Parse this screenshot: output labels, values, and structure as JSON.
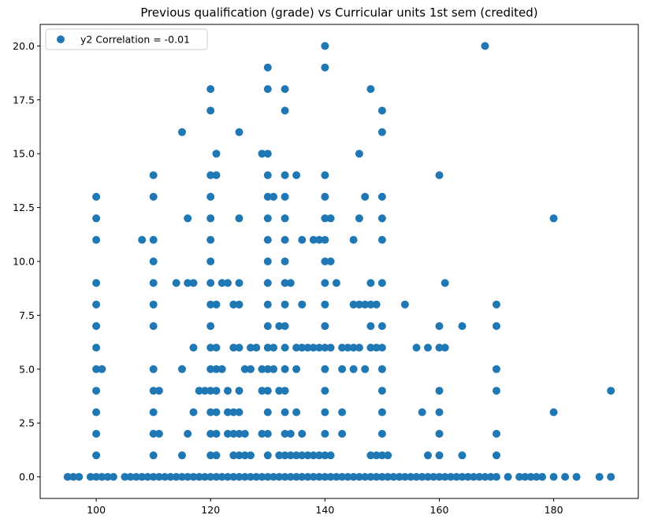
{
  "chart_data": {
    "type": "scatter",
    "title": "Previous qualification (grade) vs Curricular units 1st sem (credited)",
    "xlabel": "",
    "ylabel": "",
    "xlim": [
      90.2,
      194.8
    ],
    "ylim": [
      -1.0,
      21.0
    ],
    "x_ticks": [
      100,
      120,
      140,
      160,
      180
    ],
    "y_ticks": [
      0.0,
      2.5,
      5.0,
      7.5,
      10.0,
      12.5,
      15.0,
      17.5,
      20.0
    ],
    "y_tick_labels": [
      "0.0",
      "2.5",
      "5.0",
      "7.5",
      "10.0",
      "12.5",
      "15.0",
      "17.5",
      "20.0"
    ],
    "grid": false,
    "legend_position": "top-left",
    "marker_color": "#1f77b4",
    "series": [
      {
        "name": "y2 Correlation = -0.01",
        "points": [
          [
            95,
            0
          ],
          [
            96,
            0
          ],
          [
            97,
            0
          ],
          [
            99,
            0
          ],
          [
            100,
            0
          ],
          [
            101,
            0
          ],
          [
            102,
            0
          ],
          [
            103,
            0
          ],
          [
            105,
            0
          ],
          [
            106,
            0
          ],
          [
            107,
            0
          ],
          [
            108,
            0
          ],
          [
            109,
            0
          ],
          [
            110,
            0
          ],
          [
            111,
            0
          ],
          [
            112,
            0
          ],
          [
            113,
            0
          ],
          [
            114,
            0
          ],
          [
            115,
            0
          ],
          [
            116,
            0
          ],
          [
            117,
            0
          ],
          [
            118,
            0
          ],
          [
            119,
            0
          ],
          [
            120,
            0
          ],
          [
            121,
            0
          ],
          [
            122,
            0
          ],
          [
            123,
            0
          ],
          [
            124,
            0
          ],
          [
            125,
            0
          ],
          [
            126,
            0
          ],
          [
            127,
            0
          ],
          [
            128,
            0
          ],
          [
            129,
            0
          ],
          [
            130,
            0
          ],
          [
            131,
            0
          ],
          [
            132,
            0
          ],
          [
            133,
            0
          ],
          [
            134,
            0
          ],
          [
            135,
            0
          ],
          [
            136,
            0
          ],
          [
            137,
            0
          ],
          [
            138,
            0
          ],
          [
            139,
            0
          ],
          [
            140,
            0
          ],
          [
            141,
            0
          ],
          [
            142,
            0
          ],
          [
            143,
            0
          ],
          [
            144,
            0
          ],
          [
            145,
            0
          ],
          [
            146,
            0
          ],
          [
            147,
            0
          ],
          [
            148,
            0
          ],
          [
            149,
            0
          ],
          [
            150,
            0
          ],
          [
            151,
            0
          ],
          [
            152,
            0
          ],
          [
            153,
            0
          ],
          [
            154,
            0
          ],
          [
            155,
            0
          ],
          [
            156,
            0
          ],
          [
            157,
            0
          ],
          [
            158,
            0
          ],
          [
            159,
            0
          ],
          [
            160,
            0
          ],
          [
            161,
            0
          ],
          [
            162,
            0
          ],
          [
            163,
            0
          ],
          [
            164,
            0
          ],
          [
            165,
            0
          ],
          [
            166,
            0
          ],
          [
            167,
            0
          ],
          [
            168,
            0
          ],
          [
            169,
            0
          ],
          [
            170,
            0
          ],
          [
            172,
            0
          ],
          [
            174,
            0
          ],
          [
            175,
            0
          ],
          [
            176,
            0
          ],
          [
            177,
            0
          ],
          [
            178,
            0
          ],
          [
            180,
            0
          ],
          [
            182,
            0
          ],
          [
            184,
            0
          ],
          [
            188,
            0
          ],
          [
            190,
            0
          ],
          [
            100,
            1
          ],
          [
            100,
            2
          ],
          [
            100,
            3
          ],
          [
            100,
            4
          ],
          [
            100,
            5
          ],
          [
            100,
            6
          ],
          [
            100,
            7
          ],
          [
            100,
            8
          ],
          [
            100,
            9
          ],
          [
            100,
            11
          ],
          [
            100,
            12
          ],
          [
            100,
            13
          ],
          [
            101,
            5
          ],
          [
            108,
            11
          ],
          [
            110,
            1
          ],
          [
            110,
            2
          ],
          [
            110,
            3
          ],
          [
            110,
            4
          ],
          [
            110,
            5
          ],
          [
            110,
            7
          ],
          [
            110,
            8
          ],
          [
            110,
            9
          ],
          [
            110,
            10
          ],
          [
            110,
            11
          ],
          [
            110,
            13
          ],
          [
            110,
            14
          ],
          [
            111,
            2
          ],
          [
            111,
            4
          ],
          [
            114,
            9
          ],
          [
            115,
            1
          ],
          [
            115,
            5
          ],
          [
            115,
            16
          ],
          [
            116,
            2
          ],
          [
            116,
            9
          ],
          [
            116,
            12
          ],
          [
            117,
            3
          ],
          [
            117,
            6
          ],
          [
            117,
            9
          ],
          [
            118,
            4
          ],
          [
            119,
            4
          ],
          [
            120,
            1
          ],
          [
            120,
            2
          ],
          [
            120,
            3
          ],
          [
            120,
            4
          ],
          [
            120,
            5
          ],
          [
            120,
            6
          ],
          [
            120,
            7
          ],
          [
            120,
            8
          ],
          [
            120,
            9
          ],
          [
            120,
            10
          ],
          [
            120,
            11
          ],
          [
            120,
            12
          ],
          [
            120,
            13
          ],
          [
            120,
            14
          ],
          [
            120,
            17
          ],
          [
            120,
            18
          ],
          [
            121,
            1
          ],
          [
            121,
            2
          ],
          [
            121,
            3
          ],
          [
            121,
            4
          ],
          [
            121,
            5
          ],
          [
            121,
            6
          ],
          [
            121,
            8
          ],
          [
            121,
            14
          ],
          [
            121,
            15
          ],
          [
            122,
            5
          ],
          [
            122,
            9
          ],
          [
            123,
            2
          ],
          [
            123,
            3
          ],
          [
            123,
            4
          ],
          [
            123,
            9
          ],
          [
            124,
            1
          ],
          [
            124,
            2
          ],
          [
            124,
            3
          ],
          [
            124,
            6
          ],
          [
            124,
            8
          ],
          [
            125,
            1
          ],
          [
            125,
            2
          ],
          [
            125,
            3
          ],
          [
            125,
            4
          ],
          [
            125,
            6
          ],
          [
            125,
            8
          ],
          [
            125,
            9
          ],
          [
            125,
            12
          ],
          [
            125,
            16
          ],
          [
            126,
            1
          ],
          [
            126,
            2
          ],
          [
            126,
            5
          ],
          [
            127,
            1
          ],
          [
            127,
            5
          ],
          [
            127,
            6
          ],
          [
            128,
            6
          ],
          [
            129,
            2
          ],
          [
            129,
            4
          ],
          [
            129,
            5
          ],
          [
            129,
            15
          ],
          [
            130,
            1
          ],
          [
            130,
            2
          ],
          [
            130,
            3
          ],
          [
            130,
            4
          ],
          [
            130,
            5
          ],
          [
            130,
            6
          ],
          [
            130,
            7
          ],
          [
            130,
            8
          ],
          [
            130,
            9
          ],
          [
            130,
            10
          ],
          [
            130,
            11
          ],
          [
            130,
            12
          ],
          [
            130,
            13
          ],
          [
            130,
            14
          ],
          [
            130,
            15
          ],
          [
            130,
            18
          ],
          [
            130,
            19
          ],
          [
            131,
            5
          ],
          [
            131,
            6
          ],
          [
            131,
            13
          ],
          [
            132,
            1
          ],
          [
            132,
            4
          ],
          [
            132,
            7
          ],
          [
            133,
            1
          ],
          [
            133,
            2
          ],
          [
            133,
            3
          ],
          [
            133,
            4
          ],
          [
            133,
            5
          ],
          [
            133,
            6
          ],
          [
            133,
            7
          ],
          [
            133,
            8
          ],
          [
            133,
            9
          ],
          [
            133,
            10
          ],
          [
            133,
            11
          ],
          [
            133,
            12
          ],
          [
            133,
            13
          ],
          [
            133,
            14
          ],
          [
            133,
            17
          ],
          [
            133,
            18
          ],
          [
            134,
            1
          ],
          [
            134,
            2
          ],
          [
            134,
            9
          ],
          [
            135,
            1
          ],
          [
            135,
            3
          ],
          [
            135,
            5
          ],
          [
            135,
            6
          ],
          [
            135,
            14
          ],
          [
            136,
            1
          ],
          [
            136,
            2
          ],
          [
            136,
            6
          ],
          [
            136,
            8
          ],
          [
            136,
            11
          ],
          [
            137,
            1
          ],
          [
            137,
            6
          ],
          [
            138,
            1
          ],
          [
            138,
            6
          ],
          [
            138,
            11
          ],
          [
            139,
            1
          ],
          [
            139,
            6
          ],
          [
            139,
            11
          ],
          [
            140,
            1
          ],
          [
            140,
            2
          ],
          [
            140,
            3
          ],
          [
            140,
            4
          ],
          [
            140,
            5
          ],
          [
            140,
            6
          ],
          [
            140,
            7
          ],
          [
            140,
            8
          ],
          [
            140,
            9
          ],
          [
            140,
            10
          ],
          [
            140,
            11
          ],
          [
            140,
            12
          ],
          [
            140,
            13
          ],
          [
            140,
            14
          ],
          [
            140,
            19
          ],
          [
            140,
            20
          ],
          [
            141,
            1
          ],
          [
            141,
            6
          ],
          [
            141,
            10
          ],
          [
            141,
            12
          ],
          [
            142,
            9
          ],
          [
            143,
            2
          ],
          [
            143,
            3
          ],
          [
            143,
            5
          ],
          [
            143,
            6
          ],
          [
            144,
            6
          ],
          [
            145,
            5
          ],
          [
            145,
            6
          ],
          [
            145,
            8
          ],
          [
            145,
            11
          ],
          [
            146,
            6
          ],
          [
            146,
            8
          ],
          [
            146,
            12
          ],
          [
            146,
            15
          ],
          [
            147,
            5
          ],
          [
            147,
            8
          ],
          [
            147,
            13
          ],
          [
            148,
            1
          ],
          [
            148,
            6
          ],
          [
            148,
            7
          ],
          [
            148,
            8
          ],
          [
            148,
            9
          ],
          [
            148,
            18
          ],
          [
            149,
            1
          ],
          [
            149,
            6
          ],
          [
            149,
            8
          ],
          [
            150,
            1
          ],
          [
            150,
            2
          ],
          [
            150,
            3
          ],
          [
            150,
            4
          ],
          [
            150,
            5
          ],
          [
            150,
            6
          ],
          [
            150,
            7
          ],
          [
            150,
            9
          ],
          [
            150,
            11
          ],
          [
            150,
            12
          ],
          [
            150,
            13
          ],
          [
            150,
            16
          ],
          [
            150,
            17
          ],
          [
            151,
            1
          ],
          [
            154,
            8
          ],
          [
            156,
            6
          ],
          [
            157,
            3
          ],
          [
            158,
            1
          ],
          [
            158,
            6
          ],
          [
            160,
            1
          ],
          [
            160,
            2
          ],
          [
            160,
            3
          ],
          [
            160,
            4
          ],
          [
            160,
            6
          ],
          [
            160,
            7
          ],
          [
            160,
            14
          ],
          [
            161,
            6
          ],
          [
            161,
            9
          ],
          [
            164,
            1
          ],
          [
            164,
            7
          ],
          [
            168,
            20
          ],
          [
            170,
            1
          ],
          [
            170,
            2
          ],
          [
            170,
            4
          ],
          [
            170,
            5
          ],
          [
            170,
            7
          ],
          [
            170,
            8
          ],
          [
            180,
            3
          ],
          [
            180,
            12
          ],
          [
            190,
            4
          ]
        ]
      }
    ]
  }
}
